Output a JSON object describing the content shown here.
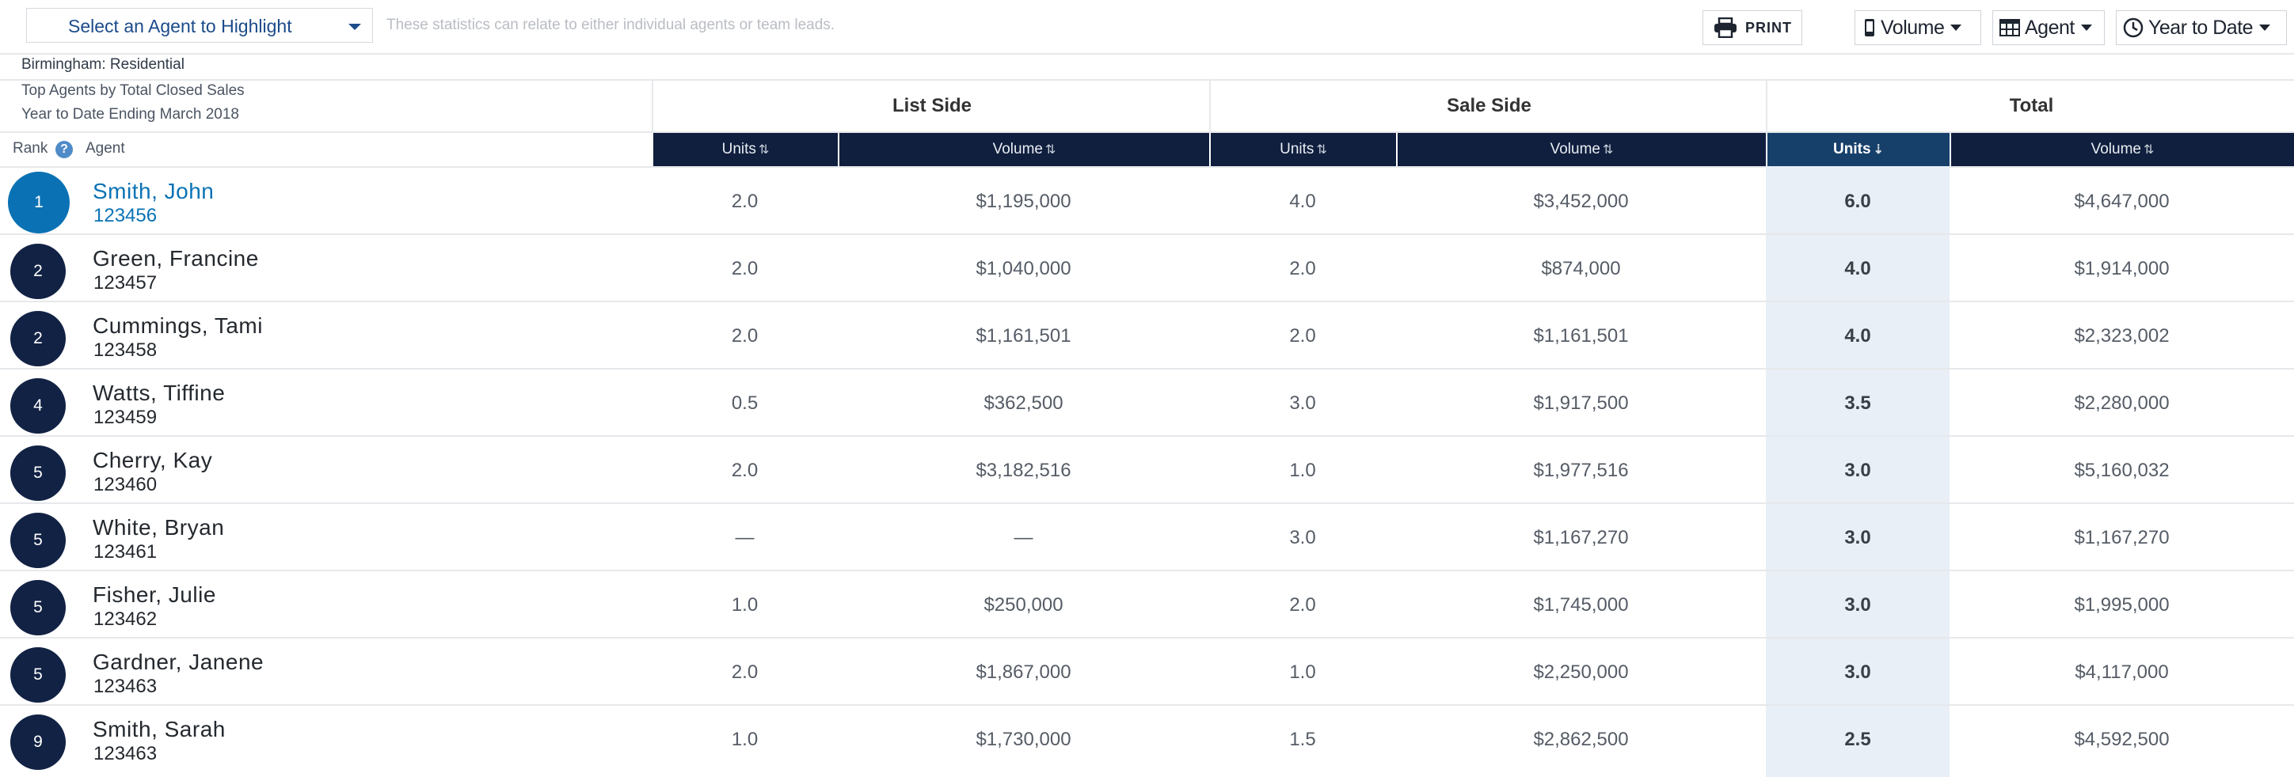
{
  "toolbar": {
    "agent_select": "Select an Agent to Highlight",
    "hint": "These statistics can relate to either individual agents or team leads.",
    "print": "PRINT",
    "volume": "Volume",
    "agent": "Agent",
    "period": "Year to Date"
  },
  "header": {
    "market": "Birmingham: Residential",
    "subtitle_1": "Top Agents by Total Closed Sales",
    "subtitle_2": "Year to Date Ending March 2018",
    "rank": "Rank",
    "agent": "Agent",
    "groups": [
      "List Side",
      "Sale Side",
      "Total"
    ],
    "columns": [
      "Units",
      "Volume",
      "Units",
      "Volume",
      "Units",
      "Volume"
    ]
  },
  "rows": [
    {
      "rank": "1",
      "name": "Smith, John",
      "id": "123456",
      "list_units": "2.0",
      "list_volume": "$1,195,000",
      "sale_units": "4.0",
      "sale_volume": "$3,452,000",
      "total_units": "6.0",
      "total_volume": "$4,647,000"
    },
    {
      "rank": "2",
      "name": "Green, Francine",
      "id": "123457",
      "list_units": "2.0",
      "list_volume": "$1,040,000",
      "sale_units": "2.0",
      "sale_volume": "$874,000",
      "total_units": "4.0",
      "total_volume": "$1,914,000"
    },
    {
      "rank": "2",
      "name": "Cummings, Tami",
      "id": "123458",
      "list_units": "2.0",
      "list_volume": "$1,161,501",
      "sale_units": "2.0",
      "sale_volume": "$1,161,501",
      "total_units": "4.0",
      "total_volume": "$2,323,002"
    },
    {
      "rank": "4",
      "name": "Watts, Tiffine",
      "id": "123459",
      "list_units": "0.5",
      "list_volume": "$362,500",
      "sale_units": "3.0",
      "sale_volume": "$1,917,500",
      "total_units": "3.5",
      "total_volume": "$2,280,000"
    },
    {
      "rank": "5",
      "name": "Cherry, Kay",
      "id": "123460",
      "list_units": "2.0",
      "list_volume": "$3,182,516",
      "sale_units": "1.0",
      "sale_volume": "$1,977,516",
      "total_units": "3.0",
      "total_volume": "$5,160,032"
    },
    {
      "rank": "5",
      "name": "White, Bryan",
      "id": "123461",
      "list_units": "—",
      "list_volume": "—",
      "sale_units": "3.0",
      "sale_volume": "$1,167,270",
      "total_units": "3.0",
      "total_volume": "$1,167,270"
    },
    {
      "rank": "5",
      "name": "Fisher, Julie",
      "id": "123462",
      "list_units": "1.0",
      "list_volume": "$250,000",
      "sale_units": "2.0",
      "sale_volume": "$1,745,000",
      "total_units": "3.0",
      "total_volume": "$1,995,000"
    },
    {
      "rank": "5",
      "name": "Gardner, Janene",
      "id": "123463",
      "list_units": "2.0",
      "list_volume": "$1,867,000",
      "sale_units": "1.0",
      "sale_volume": "$2,250,000",
      "total_units": "3.0",
      "total_volume": "$4,117,000"
    },
    {
      "rank": "9",
      "name": "Smith, Sarah",
      "id": "123463",
      "list_units": "1.0",
      "list_volume": "$1,730,000",
      "sale_units": "1.5",
      "sale_volume": "$2,862,500",
      "total_units": "2.5",
      "total_volume": "$4,592,500"
    }
  ],
  "colors": {
    "header_bg": "#101f3e",
    "rank_badge": "#122244",
    "highlight_agent": "#0a72b4",
    "active_column_bg": "#e8eff6"
  },
  "icons": {
    "print": "printer-icon",
    "volume": "phone-icon",
    "agent": "table-icon",
    "period": "clock-icon",
    "help": "question-icon",
    "sort": "sort-icon"
  }
}
